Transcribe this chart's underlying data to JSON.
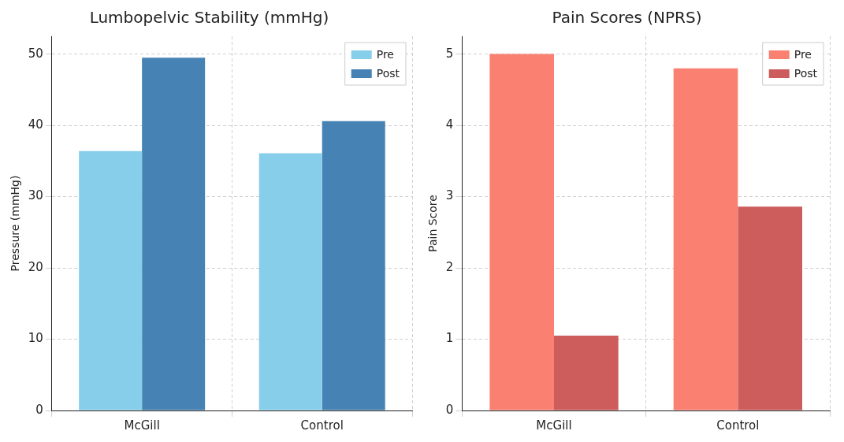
{
  "chart_data": [
    {
      "type": "bar",
      "title": "Lumbopelvic Stability (mmHg)",
      "ylabel": "Pressure (mmHg)",
      "categories": [
        "McGill",
        "Control"
      ],
      "series": [
        {
          "name": "Pre",
          "color": "#87ceeb",
          "values": [
            36.4,
            36.1
          ]
        },
        {
          "name": "Post",
          "color": "#4682b4",
          "values": [
            49.5,
            40.6
          ]
        }
      ],
      "ylim": [
        0,
        52.5
      ],
      "yticks": [
        0,
        10,
        20,
        30,
        40,
        50
      ],
      "grid": true,
      "legend": "top right"
    },
    {
      "type": "bar",
      "title": "Pain Scores (NPRS)",
      "ylabel": "Pain Score",
      "categories": [
        "McGill",
        "Control"
      ],
      "series": [
        {
          "name": "Pre",
          "color": "#fa8072",
          "values": [
            5.0,
            4.8
          ]
        },
        {
          "name": "Post",
          "color": "#cd5c5c",
          "values": [
            1.05,
            2.86
          ]
        }
      ],
      "ylim": [
        0,
        5.25
      ],
      "yticks": [
        0,
        1,
        2,
        3,
        4,
        5
      ],
      "grid": true,
      "legend": "top right"
    }
  ]
}
